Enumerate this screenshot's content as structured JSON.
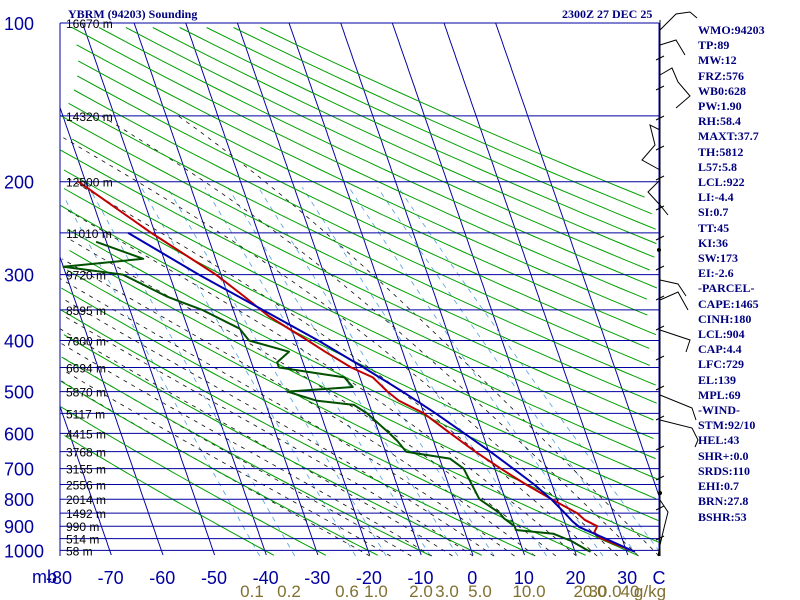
{
  "header": {
    "station": "YBRM (94203) Sounding",
    "time": "2300Z 27 DEC 25"
  },
  "indices": [
    "WMO:94203",
    "TP:89",
    "MW:12",
    "FRZ:576",
    "WB0:628",
    "PW:1.90",
    "RH:58.4",
    "MAXT:37.7",
    "TH:5812",
    "L57:5.8",
    "LCL:922",
    "LI:-4.4",
    "SI:0.7",
    "TT:45",
    "KI:36",
    "SW:173",
    "EI:-2.6",
    "-PARCEL-",
    "CAPE:1465",
    "CINH:180",
    "LCL:904",
    "CAP:4.4",
    "LFC:729",
    "EL:139",
    "MPL:69",
    "-WIND-",
    "STM:92/10",
    "HEL:43",
    "SHR+:0.0",
    "SRDS:110",
    "EHI:0.7",
    "BRN:27.8",
    "BSHR:53"
  ],
  "colors": {
    "grid": "#0000a0",
    "text": "#00007f",
    "dry_adiabat": "#00a000",
    "moist_adiabat": "#101010",
    "mixing_ratio": "#4fa0e0",
    "mixing_label": "#807030",
    "temperature": "#c00000",
    "dewpoint": "#005000",
    "parcel": "#0000b0"
  },
  "chart_data": {
    "type": "line",
    "subtype": "skew-T log-p sounding",
    "ylabel": "mb",
    "pressure_ticks": [
      100,
      200,
      300,
      400,
      500,
      600,
      700,
      800,
      900,
      1000
    ],
    "pressure_range": [
      100,
      1025
    ],
    "temperature_ticks": [
      -80,
      -70,
      -60,
      -50,
      -40,
      -30,
      -20,
      -10,
      0,
      10,
      20,
      30
    ],
    "xlabel_unit": "C",
    "mixing_ratio_labels": [
      "0.1",
      "0.2",
      "0.6",
      "1.0",
      "2.0",
      "3.0",
      "5.0",
      "10.0",
      "20.0",
      "30.0",
      "40",
      "g/kg"
    ],
    "height_labels": [
      {
        "p": 100,
        "text": "16670 m"
      },
      {
        "p": 150,
        "text": "14320 m"
      },
      {
        "p": 200,
        "text": "12500 m"
      },
      {
        "p": 250,
        "text": "11010 m"
      },
      {
        "p": 300,
        "text": "9720 m"
      },
      {
        "p": 350,
        "text": "8595 m"
      },
      {
        "p": 400,
        "text": "7600 m"
      },
      {
        "p": 450,
        "text": "6694 m"
      },
      {
        "p": 500,
        "text": "5870 m"
      },
      {
        "p": 550,
        "text": "5117 m"
      },
      {
        "p": 600,
        "text": "4415 m"
      },
      {
        "p": 650,
        "text": "3768 m"
      },
      {
        "p": 700,
        "text": "3155 m"
      },
      {
        "p": 750,
        "text": "2556 m"
      },
      {
        "p": 800,
        "text": "2014 m"
      },
      {
        "p": 850,
        "text": "1492 m"
      },
      {
        "p": 900,
        "text": "990 m"
      },
      {
        "p": 950,
        "text": "514 m"
      },
      {
        "p": 1000,
        "text": "58 m"
      }
    ],
    "series": [
      {
        "key": "temperature",
        "points": [
          [
            1006,
            31.6
          ],
          [
            1000,
            31
          ],
          [
            970,
            28
          ],
          [
            950,
            26
          ],
          [
            925,
            25
          ],
          [
            900,
            26
          ],
          [
            875,
            24
          ],
          [
            850,
            23
          ],
          [
            825,
            21
          ],
          [
            800,
            19
          ],
          [
            750,
            15
          ],
          [
            700,
            11.2
          ],
          [
            650,
            7.4
          ],
          [
            600,
            3.8
          ],
          [
            550,
            0
          ],
          [
            520,
            -4
          ],
          [
            500,
            -5.6
          ],
          [
            470,
            -7.5
          ],
          [
            450,
            -11
          ],
          [
            420,
            -15
          ],
          [
            400,
            -17.6
          ],
          [
            360,
            -23.5
          ],
          [
            330,
            -27
          ],
          [
            300,
            -31
          ],
          [
            250,
            -40.7
          ],
          [
            200,
            -51.4
          ],
          [
            150,
            -64.5
          ],
          [
            120,
            -73.5
          ],
          [
            100,
            -80.2
          ],
          [
            95,
            -82
          ]
        ]
      },
      {
        "key": "dewpoint",
        "points": [
          [
            1006,
            23
          ],
          [
            1000,
            22.5
          ],
          [
            960,
            20
          ],
          [
            930,
            17
          ],
          [
            915,
            10
          ],
          [
            900,
            10
          ],
          [
            870,
            8.5
          ],
          [
            850,
            8
          ],
          [
            800,
            5
          ],
          [
            700,
            4
          ],
          [
            670,
            2
          ],
          [
            650,
            -6
          ],
          [
            620,
            -7
          ],
          [
            600,
            -8
          ],
          [
            550,
            -11
          ],
          [
            530,
            -13
          ],
          [
            520,
            -20
          ],
          [
            500,
            -25
          ],
          [
            490,
            -12
          ],
          [
            470,
            -13
          ],
          [
            450,
            -25
          ],
          [
            440,
            -25
          ],
          [
            420,
            -22
          ],
          [
            400,
            -29
          ],
          [
            380,
            -30
          ],
          [
            350,
            -36
          ],
          [
            330,
            -42
          ],
          [
            300,
            -49
          ],
          [
            290,
            -60
          ],
          [
            280,
            -44
          ],
          [
            260,
            -52
          ],
          [
            230,
            -60
          ],
          [
            200,
            -69
          ],
          [
            180,
            -77
          ],
          [
            160,
            -83
          ],
          [
            150,
            -85
          ],
          [
            140,
            -92
          ]
        ]
      },
      {
        "key": "parcel",
        "points": [
          [
            1006,
            31.6
          ],
          [
            1000,
            31
          ],
          [
            950,
            26.8
          ],
          [
            904,
            22.5
          ],
          [
            880,
            21.5
          ],
          [
            850,
            20.6
          ],
          [
            800,
            18.9
          ],
          [
            750,
            16.6
          ],
          [
            700,
            13.6
          ],
          [
            650,
            10.3
          ],
          [
            600,
            6.5
          ],
          [
            550,
            2.3
          ],
          [
            500,
            -2.7
          ],
          [
            450,
            -8.6
          ],
          [
            400,
            -15.6
          ],
          [
            350,
            -24.3
          ],
          [
            300,
            -34.3
          ],
          [
            250,
            -45.2
          ],
          [
            200,
            -57.7
          ],
          [
            150,
            -71.5
          ],
          [
            120,
            -80
          ],
          [
            100,
            -86
          ]
        ]
      }
    ]
  }
}
